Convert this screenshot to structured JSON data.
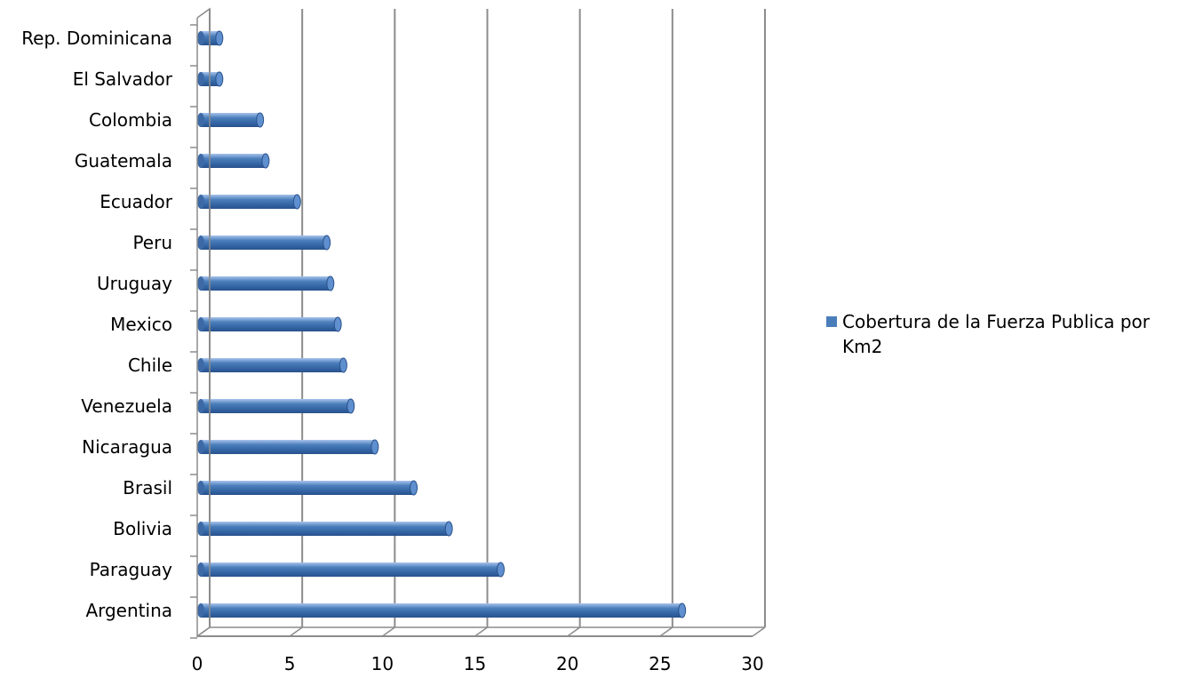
{
  "chart_data": {
    "type": "bar",
    "orientation": "horizontal",
    "style": "3d-cylinder",
    "categories": [
      "Argentina",
      "Paraguay",
      "Bolivia",
      "Brasil",
      "Nicaragua",
      "Venezuela",
      "Chile",
      "Mexico",
      "Uruguay",
      "Peru",
      "Ecuador",
      "Guatemala",
      "Colombia",
      "El Salvador",
      "Rep. Dominicana"
    ],
    "series": [
      {
        "name": "Cobertura de la Fuerza Publica por Km2",
        "values": [
          26,
          16.2,
          13.4,
          11.5,
          9.4,
          8.1,
          7.7,
          7.4,
          7.0,
          6.8,
          5.2,
          3.5,
          3.2,
          1.0,
          1.0
        ],
        "color": "#4a7ebb"
      }
    ],
    "xlim": [
      0,
      30
    ],
    "xticks": [
      0,
      5,
      10,
      15,
      20,
      25,
      30
    ],
    "gridlines": "vertical",
    "legend_position": "right",
    "title": "",
    "xlabel": "",
    "ylabel": ""
  }
}
